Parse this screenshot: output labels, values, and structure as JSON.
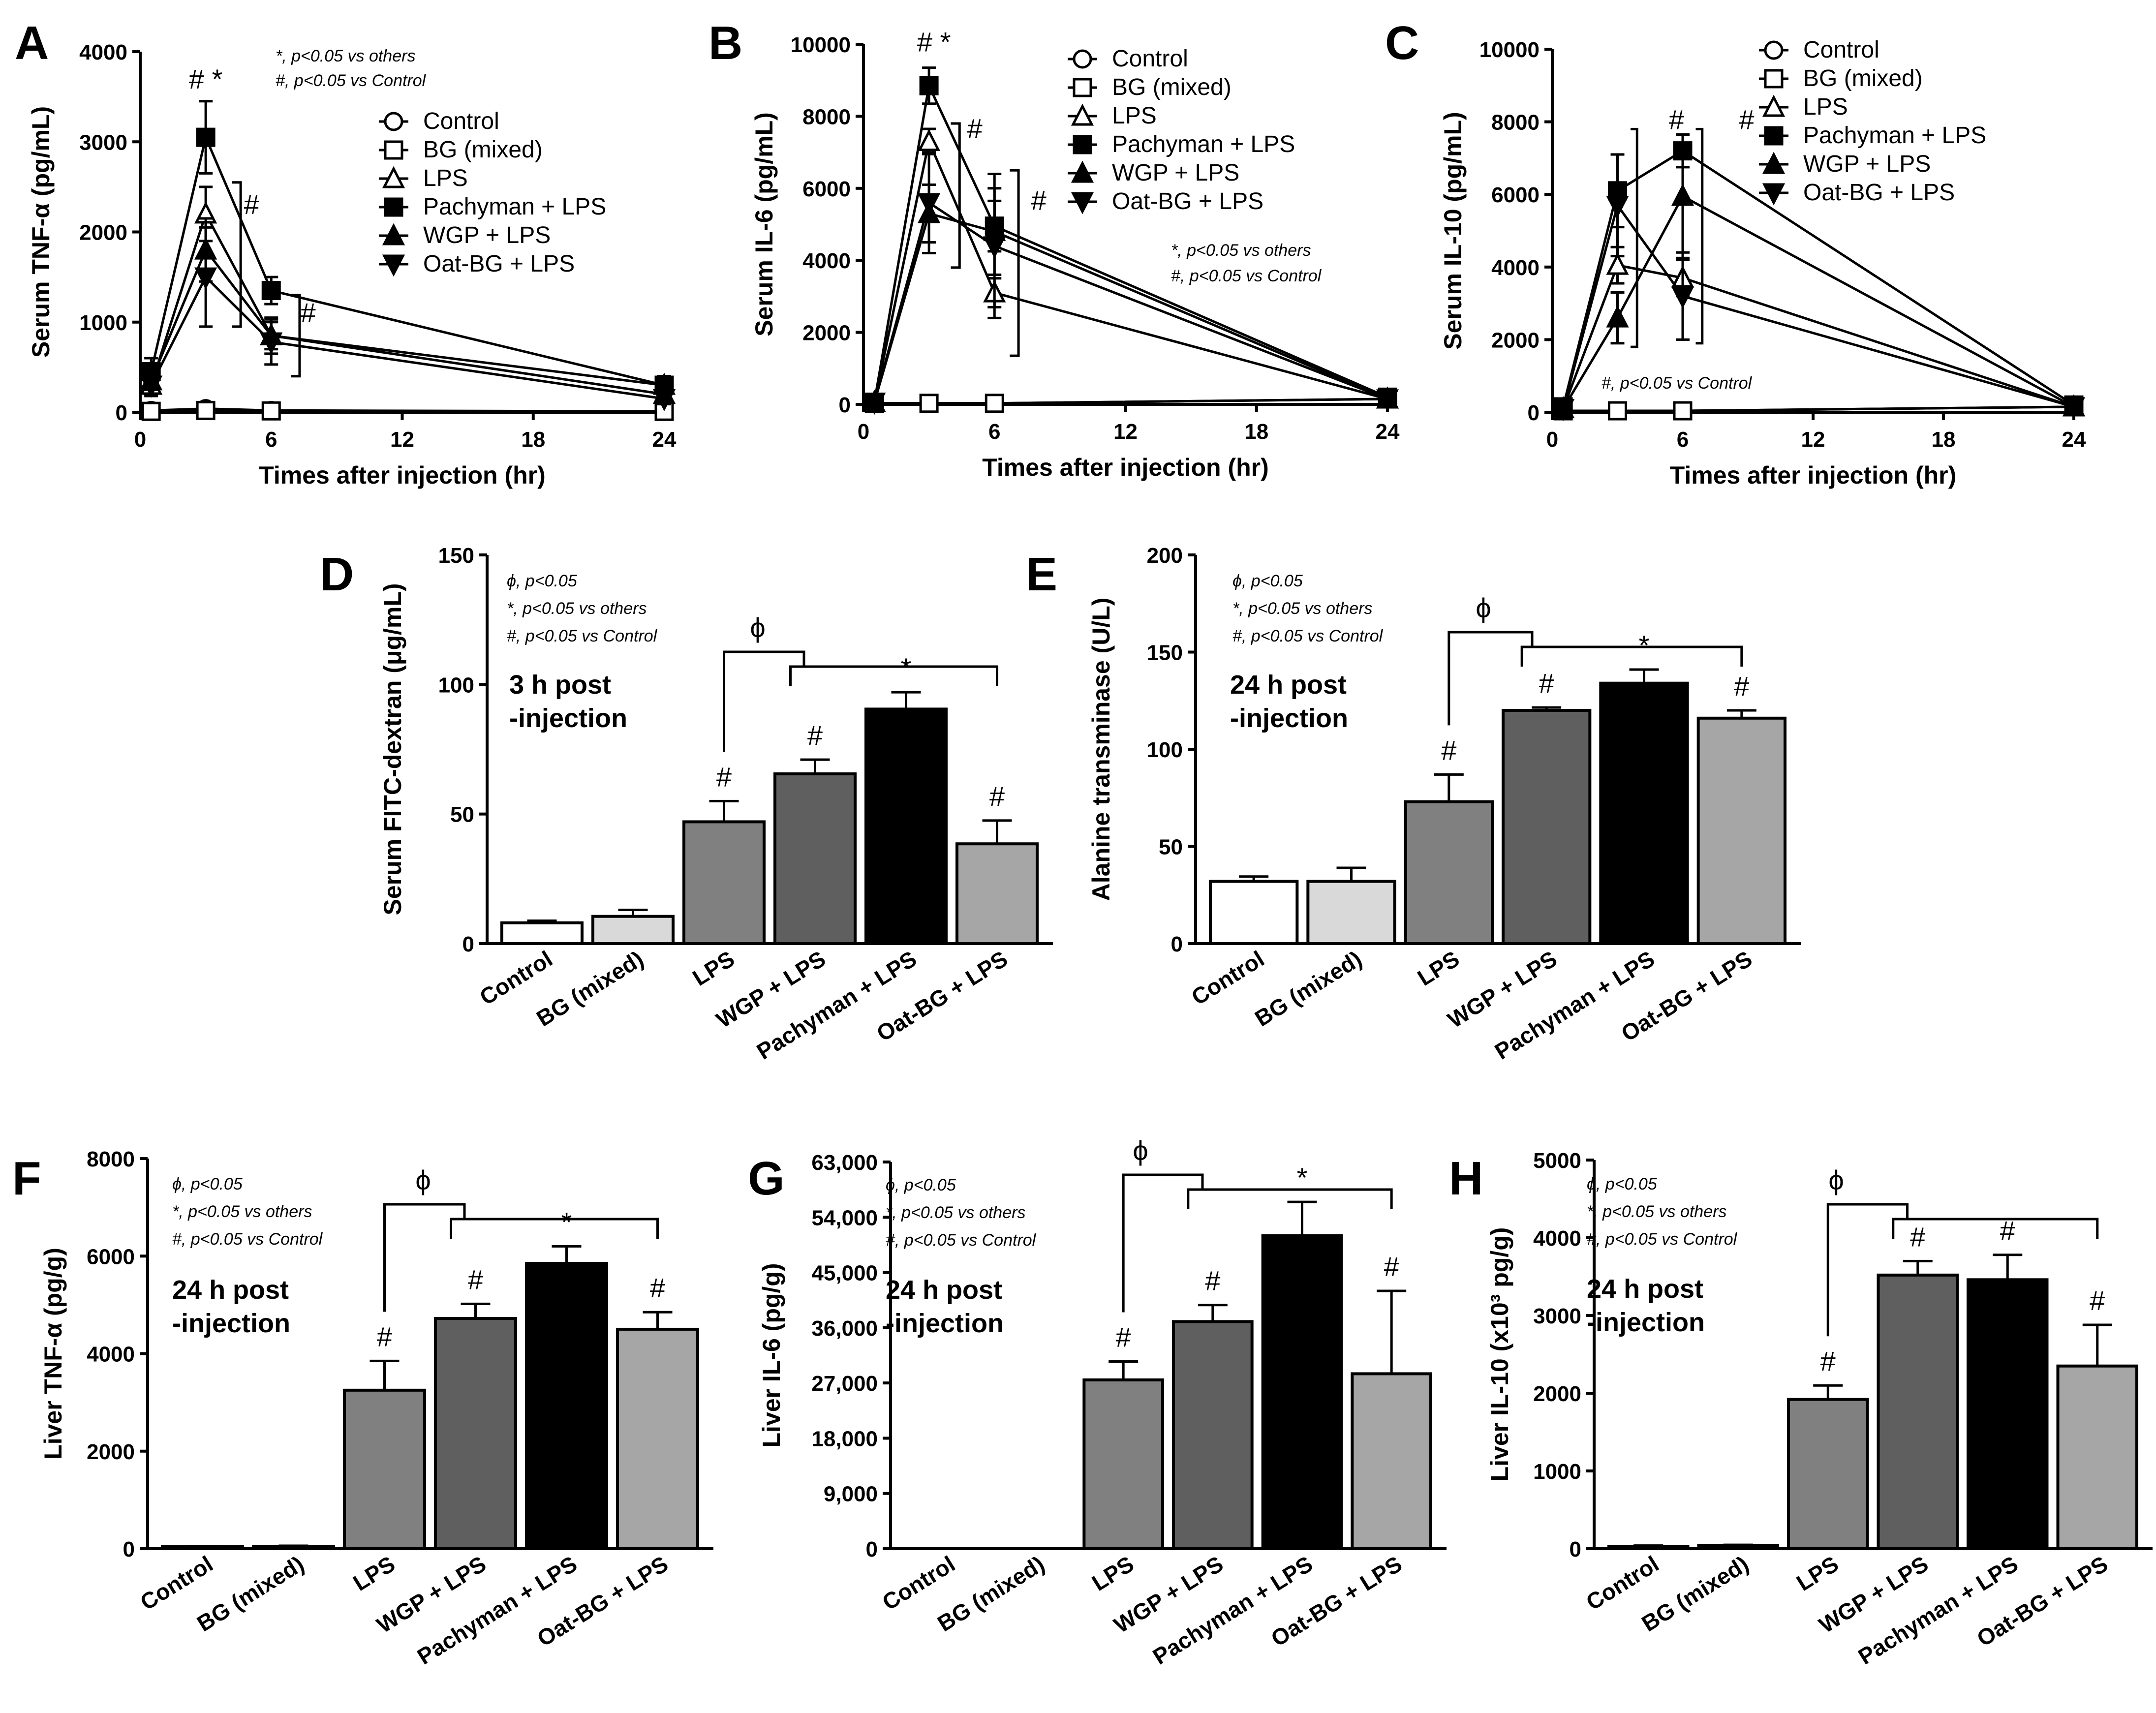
{
  "figure": {
    "background": "#ffffff",
    "colors": {
      "Control": "#ffffff",
      "BG (mixed)": "#d9d9d9",
      "LPS": "#808080",
      "WGP + LPS": "#5f5f5f",
      "Pachyman + LPS": "#000000",
      "Oat-BG + LPS": "#a6a6a6"
    }
  },
  "chart_data": [
    {
      "panel": "A",
      "type": "line",
      "xlabel": "Times after injection (hr)",
      "ylabel": "Serum TNF-α (pg/mL)",
      "xlim": [
        0,
        24
      ],
      "ylim": [
        0,
        4000
      ],
      "xticks": [
        "0",
        "6",
        "12",
        "18",
        "24"
      ],
      "yticks": [
        "0",
        "1000",
        "2000",
        "3000",
        "4000"
      ],
      "x": [
        0.5,
        3,
        6,
        24
      ],
      "series": [
        {
          "name": "Control",
          "marker": "circle-open",
          "values": [
            20,
            40,
            20,
            10
          ],
          "err": [
            10,
            20,
            10,
            10
          ]
        },
        {
          "name": "BG (mixed)",
          "marker": "square-open",
          "values": [
            10,
            20,
            15,
            10
          ],
          "err": [
            10,
            10,
            10,
            10
          ]
        },
        {
          "name": "LPS",
          "marker": "triangle-open",
          "values": [
            300,
            2200,
            850,
            300
          ],
          "err": [
            120,
            300,
            150,
            100
          ]
        },
        {
          "name": "Pachyman + LPS",
          "marker": "square",
          "values": [
            450,
            3050,
            1350,
            300
          ],
          "err": [
            150,
            400,
            150,
            100
          ]
        },
        {
          "name": "WGP + LPS",
          "marker": "triangle",
          "values": [
            350,
            1800,
            850,
            200
          ],
          "err": [
            100,
            350,
            200,
            80
          ]
        },
        {
          "name": "Oat-BG + LPS",
          "marker": "triangle-down",
          "values": [
            300,
            1500,
            780,
            150
          ],
          "err": [
            100,
            550,
            250,
            60
          ]
        }
      ],
      "annotations": [
        "# *",
        "#",
        "#"
      ],
      "notes": [
        "*, p<0.05 vs others",
        "#, p<0.05 vs Control"
      ]
    },
    {
      "panel": "B",
      "type": "line",
      "xlabel": "Times after injection (hr)",
      "ylabel": "Serum IL-6 (pg/mL)",
      "xlim": [
        0,
        24
      ],
      "ylim": [
        0,
        10000
      ],
      "xticks": [
        "0",
        "6",
        "12",
        "18",
        "24"
      ],
      "yticks": [
        "0",
        "2000",
        "4000",
        "6000",
        "8000",
        "10000"
      ],
      "x": [
        0.5,
        3,
        6,
        24
      ],
      "series": [
        {
          "name": "Control",
          "marker": "circle-open",
          "values": [
            30,
            30,
            30,
            150
          ],
          "err": [
            20,
            20,
            20,
            50
          ]
        },
        {
          "name": "BG (mixed)",
          "marker": "square-open",
          "values": [
            30,
            30,
            30,
            150
          ],
          "err": [
            20,
            20,
            20,
            50
          ]
        },
        {
          "name": "LPS",
          "marker": "triangle-open",
          "values": [
            60,
            7300,
            3100,
            150
          ],
          "err": [
            40,
            350,
            400,
            80
          ]
        },
        {
          "name": "Pachyman + LPS",
          "marker": "square",
          "values": [
            60,
            8850,
            4950,
            200
          ],
          "err": [
            40,
            500,
            700,
            80
          ]
        },
        {
          "name": "WGP + LPS",
          "marker": "triangle",
          "values": [
            60,
            5300,
            4800,
            150
          ],
          "err": [
            40,
            800,
            1200,
            80
          ]
        },
        {
          "name": "Oat-BG + LPS",
          "marker": "triangle-down",
          "values": [
            60,
            5600,
            4400,
            150
          ],
          "err": [
            40,
            1400,
            2000,
            80
          ]
        }
      ],
      "annotations": [
        "# *",
        "#",
        "#"
      ],
      "notes": [
        "*, p<0.05 vs others",
        "#, p<0.05 vs Control"
      ]
    },
    {
      "panel": "C",
      "type": "line",
      "xlabel": "Times after injection (hr)",
      "ylabel": "Serum IL-10 (pg/mL)",
      "xlim": [
        0,
        24
      ],
      "ylim": [
        0,
        10000
      ],
      "xticks": [
        "0",
        "6",
        "12",
        "18",
        "24"
      ],
      "yticks": [
        "0",
        "2000",
        "4000",
        "6000",
        "8000",
        "10000"
      ],
      "x": [
        0.5,
        3,
        6,
        24
      ],
      "series": [
        {
          "name": "Control",
          "marker": "circle-open",
          "values": [
            40,
            40,
            40,
            150
          ],
          "err": [
            20,
            20,
            20,
            50
          ]
        },
        {
          "name": "BG (mixed)",
          "marker": "square-open",
          "values": [
            40,
            40,
            40,
            150
          ],
          "err": [
            20,
            20,
            20,
            50
          ]
        },
        {
          "name": "LPS",
          "marker": "triangle-open",
          "values": [
            100,
            4050,
            3700,
            150
          ],
          "err": [
            50,
            500,
            500,
            80
          ]
        },
        {
          "name": "Pachyman + LPS",
          "marker": "square",
          "values": [
            150,
            6100,
            7200,
            200
          ],
          "err": [
            60,
            1000,
            450,
            80
          ]
        },
        {
          "name": "WGP + LPS",
          "marker": "triangle",
          "values": [
            100,
            2600,
            5950,
            150
          ],
          "err": [
            50,
            700,
            1700,
            80
          ]
        },
        {
          "name": "Oat-BG + LPS",
          "marker": "triangle-down",
          "values": [
            100,
            5700,
            3200,
            150
          ],
          "err": [
            50,
            1400,
            1200,
            80
          ]
        }
      ],
      "annotations": [
        "#",
        "#"
      ],
      "notes": [
        "#, p<0.05 vs Control"
      ]
    },
    {
      "panel": "D",
      "type": "bar",
      "ylabel": "Serum FITC-dextran (μg/mL)",
      "ylim": [
        0,
        150
      ],
      "yticks": [
        "0",
        "50",
        "100",
        "150"
      ],
      "categories": [
        "Control",
        "BG (mixed)",
        "LPS",
        "WGP + LPS",
        "Pachyman + LPS",
        "Oat-BG + LPS"
      ],
      "values": [
        8,
        10.5,
        47,
        65.5,
        90.5,
        38.5
      ],
      "err": [
        0.8,
        2.5,
        8,
        5.5,
        6.5,
        9
      ],
      "bar_labels": [
        "",
        "",
        "#",
        "#",
        "*",
        "#"
      ],
      "phi": "ϕ",
      "inset": "3 h post\n-injection",
      "notes": [
        "ϕ, p<0.05",
        "*, p<0.05 vs others",
        "#, p<0.05 vs Control"
      ]
    },
    {
      "panel": "E",
      "type": "bar",
      "ylabel": "Alanine transminase (U/L)",
      "ylim": [
        0,
        200
      ],
      "yticks": [
        "0",
        "50",
        "100",
        "150",
        "200"
      ],
      "categories": [
        "Control",
        "BG (mixed)",
        "LPS",
        "WGP + LPS",
        "Pachyman + LPS",
        "Oat-BG + LPS"
      ],
      "values": [
        32,
        32,
        73,
        120,
        134,
        116
      ],
      "err": [
        2.5,
        7,
        14,
        1.5,
        7,
        4
      ],
      "bar_labels": [
        "",
        "",
        "#",
        "#",
        "*",
        "#"
      ],
      "phi": "ϕ",
      "inset": "24 h post\n-injection",
      "notes": [
        "ϕ, p<0.05",
        "*, p<0.05 vs others",
        "#, p<0.05 vs Control"
      ]
    },
    {
      "panel": "F",
      "type": "bar",
      "ylabel": "Liver TNF-α (pg/g)",
      "ylim": [
        0,
        8000
      ],
      "yticks": [
        "0",
        "2000",
        "4000",
        "6000",
        "8000"
      ],
      "categories": [
        "Control",
        "BG (mixed)",
        "LPS",
        "WGP + LPS",
        "Pachyman + LPS",
        "Oat-BG + LPS"
      ],
      "values": [
        40,
        50,
        3250,
        4720,
        5850,
        4500
      ],
      "err": [
        10,
        10,
        600,
        300,
        350,
        350
      ],
      "bar_labels": [
        "",
        "",
        "#",
        "#",
        "*",
        "#"
      ],
      "phi": "ϕ",
      "inset": "24 h post\n-injection",
      "notes": [
        "ϕ, p<0.05",
        "*, p<0.05 vs others",
        "#, p<0.05 vs Control"
      ]
    },
    {
      "panel": "G",
      "type": "bar",
      "ylabel": "Liver IL-6 (pg/g)",
      "ylim": [
        0,
        63000
      ],
      "yticks": [
        "0",
        "9,000",
        "18,000",
        "27,000",
        "36,000",
        "45,000",
        "54,000",
        "63,000"
      ],
      "categories": [
        "Control",
        "BG (mixed)",
        "LPS",
        "WGP + LPS",
        "Pachyman + LPS",
        "Oat-BG + LPS"
      ],
      "values": [
        0,
        0,
        27500,
        37000,
        51000,
        28500
      ],
      "err": [
        0,
        0,
        3000,
        2700,
        5500,
        13500
      ],
      "bar_labels": [
        "",
        "",
        "#",
        "#",
        "*",
        "#"
      ],
      "phi": "ϕ",
      "inset": "24 h post\n-injection",
      "notes": [
        "ϕ, p<0.05",
        "*, p<0.05 vs others",
        "#, p<0.05 vs Control"
      ]
    },
    {
      "panel": "H",
      "type": "bar",
      "ylabel": "Liver IL-10 (x10³ pg/g)",
      "ylim": [
        0,
        5000
      ],
      "yticks": [
        "0",
        "1000",
        "2000",
        "3000",
        "4000",
        "5000"
      ],
      "categories": [
        "Control",
        "BG (mixed)",
        "LPS",
        "WGP + LPS",
        "Pachyman + LPS",
        "Oat-BG + LPS"
      ],
      "values": [
        30,
        40,
        1920,
        3520,
        3460,
        2350
      ],
      "err": [
        10,
        10,
        180,
        180,
        320,
        530
      ],
      "bar_labels": [
        "",
        "",
        "#",
        "#",
        "#",
        "#"
      ],
      "phi": "ϕ",
      "inset": "24 h post\n-injection",
      "notes": [
        "ϕ, p<0.05",
        "*, p<0.05 vs others",
        "#, p<0.05 vs Control"
      ]
    }
  ]
}
